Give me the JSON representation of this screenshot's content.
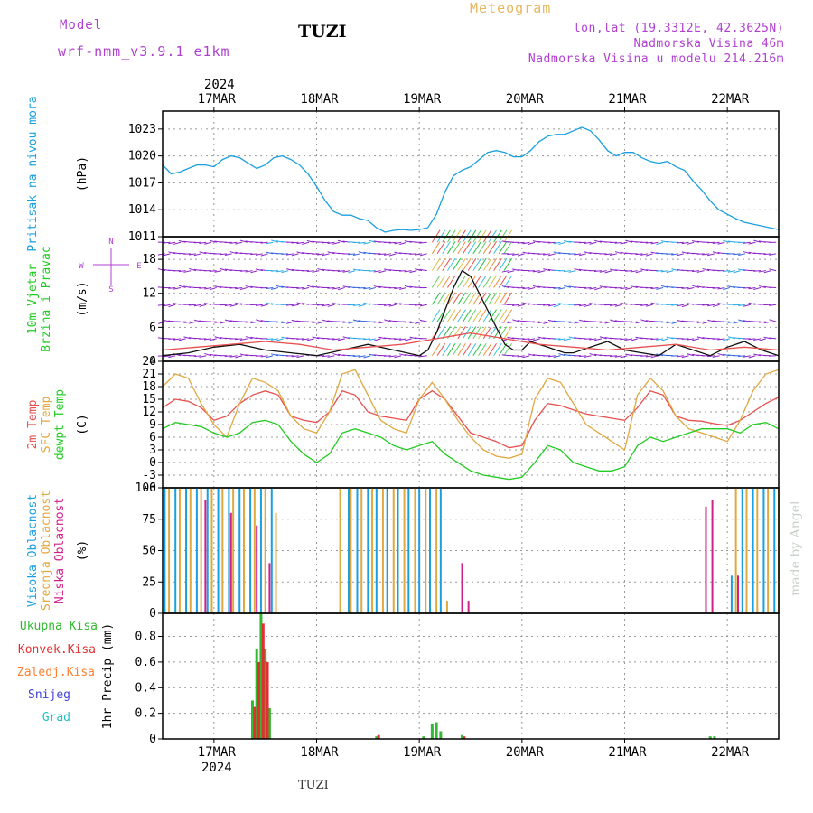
{
  "header": {
    "model_label": "Model",
    "model_name": "wrf-nmm_v3.9.1 e1km",
    "station": "TUZI",
    "title": "Meteogram",
    "lonlat": "lon,lat (19.3312E, 42.3625N)",
    "elevation": "Nadmorska Visina 46m",
    "model_elevation": "Nadmorska Visina u modelu 214.216m",
    "watermark": "made by Angel",
    "footer_station": "TUZI"
  },
  "colors": {
    "pressure": "#1a9fe0",
    "temp2m": "#e85050",
    "sfctemp": "#e0a840",
    "dewpt": "#22cc22",
    "high_cloud": "#1a9fe0",
    "mid_cloud": "#e0a840",
    "low_cloud": "#d0208a",
    "total_precip": "#33b833",
    "conv_precip": "#e03030",
    "frz_precip": "#ff8030",
    "snow": "#4040e0",
    "grad": "#20c0c0",
    "model_label": "#b040d0",
    "title": "#e8b860",
    "wind_label": "#22cc22",
    "wind_compass": "#b040d0"
  },
  "axis_top": {
    "year": "2024",
    "dates": [
      "17MAR",
      "18MAR",
      "19MAR",
      "20MAR",
      "21MAR",
      "22MAR"
    ]
  },
  "axis_bottom": {
    "year": "2024",
    "dates": [
      "17MAR",
      "18MAR",
      "19MAR",
      "20MAR",
      "21MAR",
      "22MAR"
    ]
  },
  "x_range_hours": [
    0,
    144
  ],
  "date_positions_hours": [
    12,
    36,
    60,
    84,
    108,
    132
  ],
  "chart_data": [
    {
      "type": "line",
      "panel": "pressure",
      "ylabel_lines": [
        "Pritisak na nivou mora"
      ],
      "unit": "(hPa)",
      "ylim": [
        1011,
        1025
      ],
      "yticks": [
        1011,
        1014,
        1017,
        1020,
        1023
      ],
      "grid": true,
      "series": [
        {
          "color_key": "pressure",
          "x": [
            0,
            2,
            4,
            6,
            8,
            10,
            12,
            14,
            16,
            18,
            20,
            22,
            24,
            26,
            28,
            30,
            32,
            34,
            36,
            38,
            40,
            42,
            44,
            46,
            48,
            50,
            52,
            54,
            56,
            58,
            60,
            62,
            64,
            66,
            68,
            70,
            72,
            74,
            76,
            78,
            80,
            82,
            84,
            86,
            88,
            90,
            92,
            94,
            96,
            98,
            100,
            102,
            104,
            106,
            108,
            110,
            112,
            114,
            116,
            118,
            120,
            122,
            124,
            126,
            128,
            130,
            132,
            134,
            136,
            138,
            140,
            142,
            144
          ],
          "y": [
            1019,
            1018,
            1018.2,
            1018.6,
            1019,
            1019,
            1018.8,
            1019.6,
            1020,
            1019.8,
            1019.2,
            1018.6,
            1019,
            1019.8,
            1020,
            1019.6,
            1019,
            1018,
            1016.6,
            1015,
            1013.8,
            1013.4,
            1013.4,
            1013,
            1012.8,
            1012,
            1011.5,
            1011.7,
            1011.8,
            1011.7,
            1011.8,
            1012,
            1013.5,
            1016,
            1017.8,
            1018.4,
            1018.8,
            1019.6,
            1020.4,
            1020.6,
            1020.4,
            1019.9,
            1019.9,
            1020.6,
            1021.6,
            1022.2,
            1022.4,
            1022.4,
            1022.8,
            1023.2,
            1022.8,
            1021.8,
            1020.6,
            1020,
            1020.4,
            1020.4,
            1019.8,
            1019.4,
            1019.2,
            1019.4,
            1018.8,
            1018.4,
            1017.2,
            1016.2,
            1015,
            1014,
            1013.5,
            1013,
            1012.6,
            1012.4,
            1012.2,
            1012,
            1011.8
          ]
        }
      ]
    },
    {
      "type": "line",
      "panel": "wind",
      "ylabel_lines": [
        "10m Vjetar",
        "Brzina i Pravac"
      ],
      "unit": "(m/s)",
      "compass": {
        "n": "N",
        "s": "S",
        "e": "E",
        "w": "W"
      },
      "ylim": [
        0,
        22
      ],
      "yticks": [
        0,
        6,
        12,
        18
      ],
      "grid": true,
      "series": [
        {
          "color_key": "wind_black",
          "x": [
            0,
            6,
            12,
            18,
            24,
            30,
            36,
            42,
            48,
            54,
            60,
            62,
            64,
            66,
            68,
            70,
            72,
            74,
            76,
            78,
            80,
            82,
            84,
            86,
            88,
            90,
            92,
            94,
            96,
            100,
            104,
            108,
            112,
            116,
            120,
            124,
            128,
            132,
            136,
            140,
            144
          ],
          "y": [
            1,
            1.5,
            2.5,
            3,
            2,
            1.5,
            1,
            2,
            3,
            2,
            1,
            2,
            5,
            9,
            13,
            16,
            15,
            12,
            9,
            6,
            3,
            2,
            2,
            3.5,
            3,
            2.5,
            2,
            1.5,
            1.5,
            2.5,
            3.5,
            2,
            1.5,
            1,
            3,
            2,
            1,
            2.5,
            3.5,
            2,
            1
          ]
        },
        {
          "color_key": "temp2m",
          "x": [
            0,
            8,
            16,
            24,
            32,
            40,
            48,
            56,
            64,
            72,
            80,
            88,
            96,
            104,
            112,
            120,
            128,
            136,
            144
          ],
          "y": [
            2,
            2.5,
            3,
            3.5,
            3,
            2,
            2.5,
            3,
            4,
            5,
            4,
            3,
            2.5,
            2,
            2.5,
            3,
            2,
            2.5,
            2
          ]
        }
      ]
    },
    {
      "type": "line",
      "panel": "temperature",
      "ylabel_lines": [
        "2m Temp",
        "SFC Temp",
        "dewpt Temp"
      ],
      "unit": "(C)",
      "ylim": [
        -6,
        24
      ],
      "yticks": [
        -6,
        -3,
        0,
        3,
        6,
        9,
        12,
        15,
        18,
        21,
        24
      ],
      "grid": true,
      "series": [
        {
          "name": "2m Temp",
          "color_key": "temp2m",
          "x": [
            0,
            3,
            6,
            9,
            12,
            15,
            18,
            21,
            24,
            27,
            30,
            33,
            36,
            39,
            42,
            45,
            48,
            51,
            54,
            57,
            60,
            63,
            66,
            69,
            72,
            75,
            78,
            81,
            84,
            87,
            90,
            93,
            96,
            99,
            102,
            105,
            108,
            111,
            114,
            117,
            120,
            123,
            126,
            129,
            132,
            135,
            138,
            141,
            144
          ],
          "y": [
            13,
            15,
            14.5,
            13,
            10,
            11,
            14,
            16,
            17,
            16,
            11,
            10,
            9.5,
            12,
            17,
            16,
            12,
            11,
            10.5,
            10,
            15,
            17,
            15,
            11,
            7,
            6,
            5,
            3.5,
            4,
            10,
            14,
            13.5,
            12.5,
            11.5,
            11,
            10.5,
            10,
            13,
            17,
            16,
            11,
            10,
            9.8,
            9.2,
            8.8,
            10,
            12,
            14,
            15.5
          ]
        },
        {
          "name": "SFC Temp",
          "color_key": "sfctemp",
          "x": [
            0,
            3,
            6,
            9,
            12,
            15,
            18,
            21,
            24,
            27,
            30,
            33,
            36,
            39,
            42,
            45,
            48,
            51,
            54,
            57,
            60,
            63,
            66,
            69,
            72,
            75,
            78,
            81,
            84,
            87,
            90,
            93,
            96,
            99,
            102,
            105,
            108,
            111,
            114,
            117,
            120,
            123,
            126,
            129,
            132,
            135,
            138,
            141,
            144
          ],
          "y": [
            18,
            21,
            20,
            14,
            9,
            6,
            14,
            20,
            19,
            17,
            11,
            8,
            7,
            12,
            21,
            22,
            16,
            10,
            8,
            7,
            15,
            19,
            15,
            10,
            6,
            3,
            1.5,
            1,
            2,
            15,
            20,
            19,
            14,
            9,
            7,
            5,
            3,
            16,
            20,
            17,
            11,
            8,
            7,
            6,
            5,
            10,
            17,
            21,
            22
          ]
        },
        {
          "name": "dewpt Temp",
          "color_key": "dewpt",
          "x": [
            0,
            3,
            6,
            9,
            12,
            15,
            18,
            21,
            24,
            27,
            30,
            33,
            36,
            39,
            42,
            45,
            48,
            51,
            54,
            57,
            60,
            63,
            66,
            69,
            72,
            75,
            78,
            81,
            84,
            87,
            90,
            93,
            96,
            99,
            102,
            105,
            108,
            111,
            114,
            117,
            120,
            123,
            126,
            129,
            132,
            135,
            138,
            141,
            144
          ],
          "y": [
            8,
            9.5,
            9,
            8.5,
            7,
            6,
            7,
            9.5,
            10,
            9,
            5,
            2,
            0,
            2,
            7,
            8,
            7,
            6,
            4,
            3,
            4,
            5,
            2,
            0,
            -2,
            -3,
            -3.5,
            -4,
            -3.5,
            0,
            4,
            3,
            0,
            -1,
            -2,
            -2,
            -1,
            4,
            6,
            5,
            6,
            7,
            8,
            8,
            8,
            7,
            9,
            9.5,
            8
          ]
        }
      ]
    },
    {
      "type": "bar",
      "panel": "clouds",
      "ylabel_lines": [
        "Visoka Oblacnost",
        "Srednja Oblacnost",
        "Niska Oblacnost"
      ],
      "unit": "(%)",
      "ylim": [
        0,
        100
      ],
      "yticks": [
        0,
        25,
        50,
        75,
        100
      ],
      "grid": true,
      "series": [
        {
          "name": "Visoka Oblacnost",
          "color_key": "high_cloud",
          "x": [
            0.5,
            3,
            5.5,
            8,
            10.5,
            13,
            15.5,
            18,
            20.5,
            23,
            25.5,
            43.5,
            45.5,
            48,
            50,
            52.5,
            55,
            57.5,
            60,
            62.5,
            65,
            133,
            135.5,
            138,
            140.5,
            143
          ],
          "y": [
            100,
            100,
            100,
            100,
            100,
            100,
            100,
            100,
            100,
            100,
            100,
            100,
            100,
            100,
            100,
            100,
            100,
            100,
            100,
            100,
            100,
            30,
            100,
            100,
            100,
            100
          ]
        },
        {
          "name": "Srednja Oblacnost",
          "color_key": "mid_cloud",
          "x": [
            1.5,
            4,
            6.5,
            9,
            11.5,
            14,
            16.5,
            19,
            21.5,
            24,
            26.5,
            41.5,
            44,
            46.5,
            49,
            51.5,
            54,
            56.5,
            59,
            61.5,
            64,
            66.5,
            134,
            136.5,
            139,
            141.5,
            144
          ],
          "y": [
            100,
            100,
            100,
            100,
            100,
            100,
            100,
            100,
            100,
            100,
            80,
            100,
            100,
            100,
            100,
            100,
            100,
            100,
            100,
            100,
            100,
            10,
            100,
            100,
            100,
            100,
            100
          ]
        },
        {
          "name": "Niska Oblacnost",
          "color_key": "low_cloud",
          "x": [
            10,
            16,
            22,
            25,
            70,
            71.5,
            127,
            128.5,
            134.5
          ],
          "y": [
            90,
            80,
            70,
            40,
            40,
            10,
            85,
            90,
            30
          ]
        }
      ]
    },
    {
      "type": "bar",
      "panel": "precip",
      "ylabel_lines": [
        "Ukupna Kisa",
        "Konvek.Kisa",
        "Zaledj.Kisa",
        "Snijeg",
        "Grad"
      ],
      "unit": "1hr Precip (mm)",
      "ylim": [
        0,
        0.98
      ],
      "yticks": [
        0,
        0.2,
        0.4,
        0.6,
        0.8
      ],
      "ytick_labels": [
        "0",
        "0.2",
        "0.4",
        "0.6",
        "0.8"
      ],
      "grid": true,
      "series": [
        {
          "name": "Ukupna Kisa",
          "color_key": "total_precip",
          "x": [
            21,
            22,
            23,
            24,
            25,
            50,
            61,
            63,
            64,
            65,
            70,
            128,
            129
          ],
          "y": [
            0.3,
            0.7,
            0.98,
            0.7,
            0.24,
            0.02,
            0.02,
            0.12,
            0.13,
            0.06,
            0.03,
            0.02,
            0.02
          ]
        },
        {
          "name": "Konvek.Kisa",
          "color_key": "conv_precip",
          "x": [
            21.5,
            22.5,
            23.5,
            24.5,
            50.5,
            70.5
          ],
          "y": [
            0.25,
            0.6,
            0.9,
            0.6,
            0.03,
            0.02
          ]
        }
      ]
    }
  ]
}
